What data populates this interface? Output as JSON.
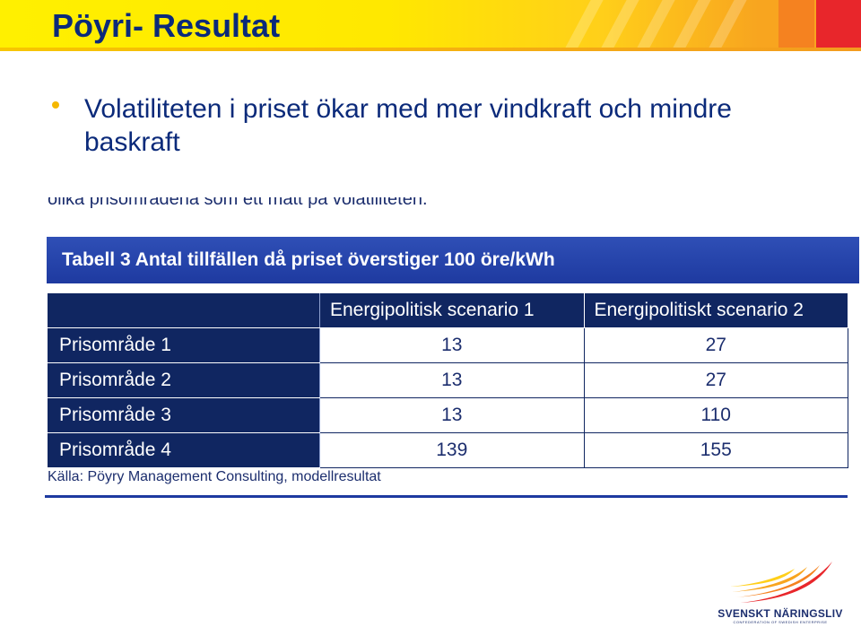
{
  "slide": {
    "title": "Pöyri- Resultat",
    "bullet": "Volatiliteten i priset ökar med mer vindkraft och mindre baskraft"
  },
  "excerpt": {
    "cut_text": "olika prisområdena som ett mått på volatiliteten.",
    "table_title": "Tabell 3 Antal tillfällen då priset överstiger 100 öre/kWh",
    "headers": [
      "",
      "Energipolitisk scenario 1",
      "Energipolitiskt scenario 2"
    ],
    "rows": [
      {
        "label": "Prisområde 1",
        "s1": "13",
        "s2": "27"
      },
      {
        "label": "Prisområde 2",
        "s1": "13",
        "s2": "27"
      },
      {
        "label": "Prisområde 3",
        "s1": "13",
        "s2": "110"
      },
      {
        "label": "Prisområde 4",
        "s1": "139",
        "s2": "155"
      }
    ],
    "source": "Källa: Pöyry Management Consulting, modellresultat"
  },
  "logo": {
    "name": "SVENSKT NÄRINGSLIV",
    "tagline": "CONFEDERATION OF SWEDISH ENTERPRISE"
  },
  "colors": {
    "title": "#0b2a7a",
    "header_yellow": "#fff000",
    "header_red": "#e8262b",
    "table_dark": "#102661",
    "banner_blue": "#1e3aa0",
    "bullet": "#f5b800"
  }
}
